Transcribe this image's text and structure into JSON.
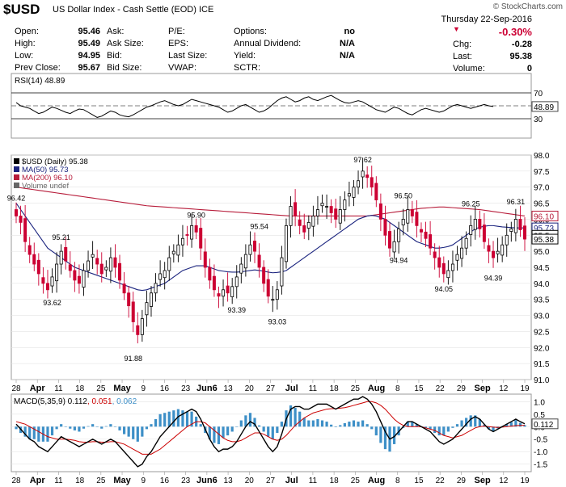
{
  "header": {
    "symbol": "$USD",
    "description": "US Dollar Index - Cash Settle (EOD) ICE",
    "brand": "© StockCharts.com"
  },
  "quote": {
    "date": "Thursday  22-Sep-2016",
    "change_pct": "-0.30%",
    "chg_label": "Chg:",
    "chg": "-0.28",
    "last_label": "Last:",
    "last": "95.38",
    "volume_label": "Volume:",
    "volume": "0"
  },
  "stats": {
    "col1": [
      {
        "label": "Open:",
        "value": "95.46"
      },
      {
        "label": "High:",
        "value": "95.49"
      },
      {
        "label": "Low:",
        "value": "94.95"
      },
      {
        "label": "Prev Close:",
        "value": "95.67"
      }
    ],
    "col2": [
      {
        "label": "Ask:",
        "value": ""
      },
      {
        "label": "Ask Size:",
        "value": ""
      },
      {
        "label": "Bid:",
        "value": ""
      },
      {
        "label": "Bid Size:",
        "value": ""
      }
    ],
    "col3": [
      {
        "label": "P/E:",
        "value": ""
      },
      {
        "label": "EPS:",
        "value": ""
      },
      {
        "label": "Last Size:",
        "value": ""
      },
      {
        "label": "VWAP:",
        "value": ""
      }
    ],
    "col4": [
      {
        "label": "Options:",
        "value": "no"
      },
      {
        "label": "Annual Dividend:",
        "value": "N/A"
      },
      {
        "label": "Yield:",
        "value": "N/A"
      },
      {
        "label": "SCTR:",
        "value": ""
      }
    ]
  },
  "colors": {
    "up": "#000000",
    "down": "#cc0033",
    "ma50": "#1a237e",
    "ma200": "#b71c3a",
    "hist": "#3d8fc7",
    "macd": "#000000",
    "signal": "#cc0000"
  },
  "chart_data": [
    {
      "type": "line",
      "title": "RSI(14) 48.89",
      "value": 48.89,
      "ylim": [
        0,
        100
      ],
      "y_ticks": [
        30,
        70
      ],
      "y_marks": [
        50
      ],
      "label": "48.89",
      "values": [
        55,
        50,
        48,
        46,
        42,
        38,
        40,
        44,
        48,
        46,
        43,
        40,
        38,
        42,
        45,
        44,
        40,
        36,
        32,
        34,
        38,
        42,
        40,
        36,
        34,
        33,
        36,
        40,
        44,
        48,
        50,
        53,
        56,
        58,
        55,
        52,
        50,
        52,
        56,
        60,
        58,
        56,
        54,
        52,
        50,
        48,
        44,
        40,
        42,
        46,
        50,
        52,
        48,
        44,
        40,
        42,
        46,
        52,
        58,
        62,
        64,
        60,
        56,
        58,
        62,
        64,
        60,
        58,
        61,
        64,
        66,
        62,
        58,
        55,
        54,
        56,
        58,
        56,
        52,
        48,
        44,
        42,
        40,
        44,
        48,
        46,
        42,
        38,
        36,
        40,
        44,
        46,
        44,
        42,
        40,
        42,
        46,
        50,
        52,
        50,
        48,
        46,
        48,
        50,
        52,
        50,
        48.89
      ]
    },
    {
      "type": "candlestick",
      "title": "$USD (Daily) 95.38",
      "ylim": [
        91.0,
        98.0
      ],
      "y_ticks": [
        91.0,
        91.5,
        92.0,
        92.5,
        93.0,
        93.5,
        94.0,
        94.5,
        95.0,
        95.5,
        96.0,
        96.5,
        97.0,
        97.5,
        98.0
      ],
      "legend": [
        "$USD (Daily) 95.38",
        "MA(50) 95.73",
        "MA(200) 96.10",
        "Volume undef"
      ],
      "x_labels": [
        "28",
        "Apr",
        "11",
        "18",
        "25",
        "May",
        "9",
        "16",
        "23",
        "Jun6",
        "13",
        "20",
        "27",
        "Jul",
        "11",
        "18",
        "25",
        "Aug",
        "8",
        "15",
        "22",
        "29",
        "Sep",
        "12",
        "19"
      ],
      "annotations": [
        {
          "label": "96.42",
          "value": 96.42,
          "pos": "above",
          "day": 0
        },
        {
          "label": "95.21",
          "value": 95.21,
          "pos": "above",
          "day": 10
        },
        {
          "label": "93.62",
          "value": 93.62,
          "pos": "below",
          "day": 8
        },
        {
          "label": "91.88",
          "value": 91.88,
          "pos": "below",
          "day": 26
        },
        {
          "label": "95.90",
          "value": 95.9,
          "pos": "above",
          "day": 40
        },
        {
          "label": "93.39",
          "value": 93.39,
          "pos": "below",
          "day": 49
        },
        {
          "label": "95.54",
          "value": 95.54,
          "pos": "above",
          "day": 54
        },
        {
          "label": "93.03",
          "value": 93.03,
          "pos": "below",
          "day": 58
        },
        {
          "label": "97.62",
          "value": 97.62,
          "pos": "above",
          "day": 77
        },
        {
          "label": "96.50",
          "value": 96.5,
          "pos": "above",
          "day": 86
        },
        {
          "label": "94.94",
          "value": 94.94,
          "pos": "below",
          "day": 85
        },
        {
          "label": "94.05",
          "value": 94.05,
          "pos": "below",
          "day": 95
        },
        {
          "label": "96.25",
          "value": 96.25,
          "pos": "above",
          "day": 101
        },
        {
          "label": "94.39",
          "value": 94.39,
          "pos": "below",
          "day": 106
        },
        {
          "label": "96.31",
          "value": 96.31,
          "pos": "above",
          "day": 111
        }
      ],
      "price_labels": [
        {
          "text": "96.10",
          "value": 96.1,
          "color": "#b71c3a"
        },
        {
          "text": "95.73",
          "value": 95.73,
          "color": "#1a237e"
        },
        {
          "text": "95.5",
          "value": 95.5,
          "color": "#000000"
        },
        {
          "text": "95.38",
          "value": 95.38,
          "color": "#000000"
        }
      ],
      "closes": [
        96.1,
        95.9,
        95.3,
        94.9,
        94.6,
        94.3,
        94.0,
        93.8,
        94.2,
        94.6,
        95.0,
        94.7,
        94.4,
        94.1,
        94.0,
        94.4,
        94.7,
        94.9,
        94.6,
        94.3,
        94.5,
        94.8,
        94.5,
        94.1,
        93.7,
        93.3,
        92.8,
        92.4,
        92.9,
        93.4,
        93.7,
        94.0,
        94.3,
        94.4,
        94.8,
        95.0,
        95.2,
        95.4,
        95.5,
        95.8,
        95.6,
        95.1,
        94.5,
        94.1,
        93.8,
        93.6,
        93.8,
        93.7,
        93.9,
        94.2,
        94.6,
        94.9,
        95.2,
        95.0,
        94.5,
        94.0,
        93.6,
        93.5,
        93.8,
        94.8,
        95.8,
        96.4,
        96.1,
        95.8,
        95.6,
        95.9,
        96.1,
        96.3,
        96.5,
        96.4,
        96.2,
        96.0,
        96.3,
        96.6,
        96.8,
        97.0,
        97.2,
        97.5,
        97.3,
        97.0,
        96.6,
        96.0,
        95.5,
        95.1,
        95.3,
        95.7,
        96.0,
        96.3,
        96.1,
        95.8,
        95.6,
        95.4,
        95.1,
        94.8,
        94.5,
        94.3,
        94.4,
        94.6,
        94.9,
        95.1,
        95.4,
        95.8,
        96.0,
        95.7,
        95.3,
        95.0,
        94.8,
        95.0,
        95.2,
        95.5,
        95.7,
        96.0,
        95.67,
        95.38
      ],
      "ma50": [
        96.5,
        96.3,
        96.1,
        95.9,
        95.7,
        95.5,
        95.3,
        95.1,
        95.0,
        94.9,
        94.8,
        94.7,
        94.6,
        94.5,
        94.45,
        94.4,
        94.35,
        94.3,
        94.25,
        94.2,
        94.15,
        94.1,
        94.05,
        94.0,
        93.95,
        93.9,
        93.85,
        93.8,
        93.78,
        93.8,
        93.85,
        93.9,
        93.95,
        94.0,
        94.1,
        94.2,
        94.3,
        94.4,
        94.45,
        94.5,
        94.55,
        94.55,
        94.55,
        94.5,
        94.45,
        94.4,
        94.38,
        94.36,
        94.35,
        94.35,
        94.36,
        94.38,
        94.4,
        94.42,
        94.4,
        94.38,
        94.35,
        94.33,
        94.34,
        94.36,
        94.4,
        94.5,
        94.6,
        94.7,
        94.8,
        94.9,
        95.0,
        95.1,
        95.2,
        95.3,
        95.4,
        95.5,
        95.6,
        95.7,
        95.8,
        95.9,
        96.0,
        96.05,
        96.1,
        96.12,
        96.1,
        96.05,
        96.0,
        95.9,
        95.8,
        95.7,
        95.6,
        95.5,
        95.4,
        95.3,
        95.25,
        95.2,
        95.15,
        95.1,
        95.1,
        95.12,
        95.15,
        95.2,
        95.3,
        95.4,
        95.5,
        95.6,
        95.7,
        95.75,
        95.78,
        95.8,
        95.8,
        95.78,
        95.76,
        95.75,
        95.74,
        95.73,
        95.73,
        95.73
      ],
      "ma200": [
        97.0,
        96.98,
        96.96,
        96.94,
        96.92,
        96.9,
        96.88,
        96.86,
        96.84,
        96.82,
        96.8,
        96.78,
        96.76,
        96.74,
        96.72,
        96.7,
        96.68,
        96.66,
        96.64,
        96.62,
        96.6,
        96.58,
        96.56,
        96.54,
        96.52,
        96.5,
        96.48,
        96.46,
        96.44,
        96.42,
        96.41,
        96.4,
        96.39,
        96.38,
        96.37,
        96.36,
        96.35,
        96.34,
        96.33,
        96.32,
        96.31,
        96.3,
        96.29,
        96.28,
        96.27,
        96.26,
        96.25,
        96.24,
        96.23,
        96.22,
        96.21,
        96.2,
        96.19,
        96.18,
        96.17,
        96.16,
        96.15,
        96.14,
        96.13,
        96.12,
        96.11,
        96.1,
        96.1,
        96.1,
        96.1,
        96.1,
        96.1,
        96.1,
        96.1,
        96.1,
        96.1,
        96.1,
        96.1,
        96.1,
        96.1,
        96.1,
        96.1,
        96.1,
        96.1,
        96.12,
        96.14,
        96.16,
        96.18,
        96.2,
        96.22,
        96.24,
        96.26,
        96.28,
        96.3,
        96.32,
        96.34,
        96.35,
        96.36,
        96.37,
        96.38,
        96.38,
        96.37,
        96.36,
        96.35,
        96.34,
        96.33,
        96.32,
        96.31,
        96.3,
        96.28,
        96.26,
        96.24,
        96.22,
        96.2,
        96.18,
        96.16,
        96.14,
        96.12,
        96.1
      ]
    },
    {
      "type": "bar",
      "title": "MACD(5,35,9)",
      "legend": [
        "MACD(5,35,9) 0.112",
        "0.051",
        "0.062"
      ],
      "ylim": [
        -1.8,
        1.3
      ],
      "y_ticks": [
        -1.5,
        -1.0,
        -0.5,
        0.0,
        0.5,
        1.0
      ],
      "label": "0.112",
      "macd": [
        0.1,
        -0.1,
        -0.3,
        -0.5,
        -0.6,
        -0.8,
        -0.9,
        -1.0,
        -0.8,
        -0.6,
        -0.4,
        -0.5,
        -0.6,
        -0.7,
        -0.8,
        -0.7,
        -0.6,
        -0.5,
        -0.6,
        -0.7,
        -0.6,
        -0.5,
        -0.6,
        -0.8,
        -1.0,
        -1.2,
        -1.4,
        -1.6,
        -1.5,
        -1.2,
        -1.0,
        -0.7,
        -0.4,
        -0.2,
        0.0,
        0.2,
        0.4,
        0.5,
        0.6,
        0.7,
        0.6,
        0.3,
        -0.1,
        -0.5,
        -0.8,
        -1.0,
        -0.9,
        -0.9,
        -0.8,
        -0.6,
        -0.3,
        0.0,
        0.2,
        0.1,
        -0.2,
        -0.5,
        -0.8,
        -1.0,
        -0.8,
        -0.3,
        0.3,
        0.7,
        0.8,
        0.8,
        0.7,
        0.7,
        0.8,
        0.9,
        0.9,
        0.9,
        0.8,
        0.7,
        0.8,
        0.9,
        1.0,
        1.1,
        1.1,
        1.2,
        1.1,
        0.9,
        0.6,
        0.2,
        -0.2,
        -0.5,
        -0.4,
        -0.2,
        0.0,
        0.2,
        0.2,
        0.1,
        0.0,
        -0.1,
        -0.2,
        -0.4,
        -0.6,
        -0.7,
        -0.6,
        -0.5,
        -0.3,
        -0.1,
        0.1,
        0.3,
        0.4,
        0.3,
        0.1,
        -0.1,
        -0.2,
        -0.1,
        0.0,
        0.1,
        0.2,
        0.3,
        0.2,
        0.112
      ],
      "signal": [
        0.2,
        0.15,
        0.1,
        0.0,
        -0.1,
        -0.2,
        -0.3,
        -0.4,
        -0.45,
        -0.5,
        -0.5,
        -0.5,
        -0.52,
        -0.55,
        -0.6,
        -0.62,
        -0.62,
        -0.6,
        -0.6,
        -0.62,
        -0.62,
        -0.6,
        -0.6,
        -0.65,
        -0.7,
        -0.8,
        -0.9,
        -1.0,
        -1.1,
        -1.1,
        -1.1,
        -1.0,
        -0.9,
        -0.75,
        -0.6,
        -0.45,
        -0.3,
        -0.15,
        0.0,
        0.1,
        0.2,
        0.2,
        0.15,
        0.0,
        -0.15,
        -0.3,
        -0.45,
        -0.55,
        -0.6,
        -0.6,
        -0.55,
        -0.45,
        -0.35,
        -0.25,
        -0.25,
        -0.3,
        -0.4,
        -0.5,
        -0.55,
        -0.5,
        -0.35,
        -0.15,
        0.05,
        0.2,
        0.35,
        0.45,
        0.55,
        0.6,
        0.65,
        0.7,
        0.72,
        0.72,
        0.74,
        0.76,
        0.8,
        0.85,
        0.9,
        0.95,
        1.0,
        1.0,
        0.95,
        0.85,
        0.7,
        0.5,
        0.3,
        0.15,
        0.05,
        0.0,
        0.0,
        0.0,
        0.0,
        -0.05,
        -0.1,
        -0.15,
        -0.25,
        -0.35,
        -0.4,
        -0.45,
        -0.4,
        -0.35,
        -0.25,
        -0.15,
        -0.05,
        0.0,
        0.02,
        0.0,
        -0.02,
        -0.03,
        -0.02,
        0.0,
        0.02,
        0.04,
        0.05,
        0.051
      ]
    }
  ]
}
